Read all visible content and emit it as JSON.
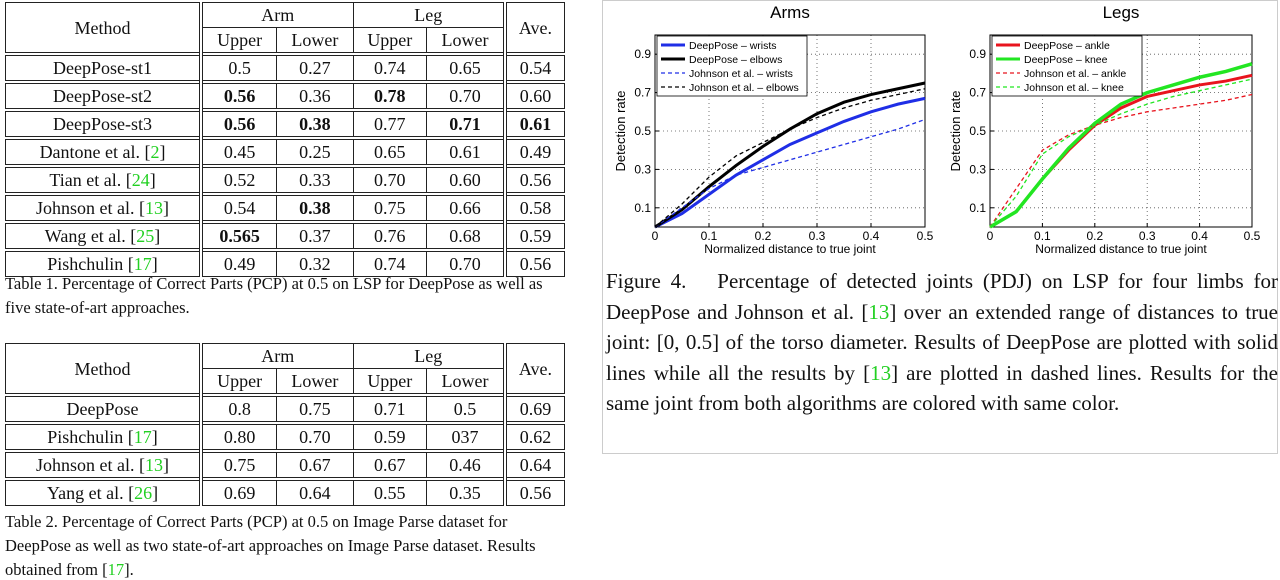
{
  "table1": {
    "header": {
      "method": "Method",
      "groups": [
        "Arm",
        "Leg"
      ],
      "sub": [
        "Upper",
        "Lower",
        "Upper",
        "Lower"
      ],
      "ave": "Ave."
    },
    "groups": [
      [
        {
          "method": [
            "DeepPose-st1"
          ],
          "cells": [
            "0.5",
            "0.27",
            "0.74",
            "0.65",
            "0.54"
          ]
        },
        {
          "method": [
            "DeepPose-st2"
          ],
          "cells": [
            {
              "text": "0.56",
              "bold": true
            },
            "0.36",
            {
              "text": "0.78",
              "bold": true
            },
            "0.70",
            "0.60"
          ]
        },
        {
          "method": [
            "DeepPose-st3"
          ],
          "cells": [
            {
              "text": "0.56",
              "bold": true
            },
            {
              "text": "0.38",
              "bold": true
            },
            "0.77",
            {
              "text": "0.71",
              "bold": true
            },
            {
              "text": "0.61",
              "bold": true
            }
          ]
        }
      ],
      [
        {
          "method": [
            "Dantone et al. [",
            "2",
            "]"
          ],
          "cells": [
            "0.45",
            "0.25",
            "0.65",
            "0.61",
            "0.49"
          ]
        },
        {
          "method": [
            "Tian et al. [",
            "24",
            "]"
          ],
          "cells": [
            "0.52",
            "0.33",
            "0.70",
            "0.60",
            "0.56"
          ]
        },
        {
          "method": [
            "Johnson et al. [",
            "13",
            "]"
          ],
          "cells": [
            "0.54",
            {
              "text": "0.38",
              "bold": true
            },
            "0.75",
            "0.66",
            "0.58"
          ]
        },
        {
          "method": [
            "Wang et al. [",
            "25",
            "]"
          ],
          "cells": [
            {
              "text": "0.565",
              "bold": true
            },
            "0.37",
            "0.76",
            "0.68",
            "0.59"
          ]
        },
        {
          "method": [
            "Pishchulin [",
            "17",
            "]"
          ],
          "cells": [
            "0.49",
            "0.32",
            "0.74",
            "0.70",
            "0.56"
          ]
        }
      ]
    ],
    "caption": [
      "Table 1. Percentage of Correct Parts (PCP) at 0.5 on LSP for DeepPose as well as five state-of-art approaches."
    ]
  },
  "table2": {
    "header": {
      "method": "Method",
      "groups": [
        "Arm",
        "Leg"
      ],
      "sub": [
        "Upper",
        "Lower",
        "Upper",
        "Lower"
      ],
      "ave": "Ave."
    },
    "groups": [
      [
        {
          "method": [
            "DeepPose"
          ],
          "cells": [
            "0.8",
            "0.75",
            "0.71",
            "0.5",
            "0.69"
          ]
        }
      ],
      [
        {
          "method": [
            "Pishchulin [",
            "17",
            "]"
          ],
          "cells": [
            "0.80",
            "0.70",
            "0.59",
            "037",
            "0.62"
          ]
        },
        {
          "method": [
            "Johnson et al. [",
            "13",
            "]"
          ],
          "cells": [
            "0.75",
            "0.67",
            "0.67",
            "0.46",
            "0.64"
          ]
        },
        {
          "method": [
            "Yang et al. [",
            "26",
            "]"
          ],
          "cells": [
            "0.69",
            "0.64",
            "0.55",
            "0.35",
            "0.56"
          ]
        }
      ]
    ],
    "caption": [
      "Table 2. Percentage of Correct Parts (PCP) at 0.5 on Image Parse dataset for DeepPose as well as two state-of-art approaches on Image Parse dataset. Results obtained from [",
      "17",
      "]."
    ]
  },
  "figure": {
    "caption": [
      "Figure 4.  Percentage of detected joints (PDJ) on LSP for four limbs for DeepPose and Johnson et al. [",
      "13",
      "] over an extended range of distances to true joint: [0, 0.5] of the torso diameter. Results of DeepPose are plotted with solid lines while all the results by [",
      "13",
      "] are plotted in dashed lines. Results for the same joint from both algorithms are colored with same color."
    ]
  },
  "chart_data": [
    {
      "type": "line",
      "title": "Arms",
      "x_label": "Normalized distance to true joint",
      "y_label": "Detection rate",
      "x": [
        0,
        0.05,
        0.1,
        0.15,
        0.2,
        0.25,
        0.3,
        0.35,
        0.4,
        0.45,
        0.5
      ],
      "xlim": [
        0,
        0.5
      ],
      "ylim": [
        0,
        1
      ],
      "xticks": [
        0,
        0.1,
        0.2,
        0.3,
        0.4,
        0.5
      ],
      "yticks": [
        0.1,
        0.3,
        0.5,
        0.7,
        0.9
      ],
      "grid": true,
      "legend": "upper left",
      "series": [
        {
          "name": "DeepPose – wrists",
          "color": "#1f2ee6",
          "dashed": false,
          "width": 3,
          "values": [
            0,
            0.07,
            0.17,
            0.27,
            0.35,
            0.43,
            0.49,
            0.55,
            0.6,
            0.64,
            0.67
          ]
        },
        {
          "name": "DeepPose – elbows",
          "color": "#000000",
          "dashed": false,
          "width": 3,
          "values": [
            0,
            0.09,
            0.21,
            0.32,
            0.42,
            0.51,
            0.59,
            0.65,
            0.69,
            0.72,
            0.75
          ]
        },
        {
          "name": "Johnson et al. – wrists",
          "color": "#1f2ee6",
          "dashed": true,
          "width": 1.3,
          "values": [
            0,
            0.1,
            0.2,
            0.27,
            0.31,
            0.35,
            0.39,
            0.43,
            0.47,
            0.51,
            0.56
          ]
        },
        {
          "name": "Johnson et al. – elbows",
          "color": "#000000",
          "dashed": true,
          "width": 1.3,
          "values": [
            0,
            0.12,
            0.26,
            0.37,
            0.44,
            0.51,
            0.57,
            0.62,
            0.66,
            0.69,
            0.72
          ]
        }
      ]
    },
    {
      "type": "line",
      "title": "Legs",
      "x_label": "Normalized distance to true joint",
      "y_label": "Detection rate",
      "x": [
        0,
        0.05,
        0.1,
        0.15,
        0.2,
        0.25,
        0.3,
        0.35,
        0.4,
        0.45,
        0.5
      ],
      "xlim": [
        0,
        0.5
      ],
      "ylim": [
        0,
        1
      ],
      "xticks": [
        0,
        0.1,
        0.2,
        0.3,
        0.4,
        0.5
      ],
      "yticks": [
        0.1,
        0.3,
        0.5,
        0.7,
        0.9
      ],
      "grid": true,
      "legend": "upper left",
      "series": [
        {
          "name": "DeepPose – ankle",
          "color": "#e8141e",
          "dashed": false,
          "width": 3,
          "values": [
            0,
            0.08,
            0.25,
            0.4,
            0.53,
            0.62,
            0.68,
            0.71,
            0.74,
            0.76,
            0.79
          ]
        },
        {
          "name": "DeepPose – knee",
          "color": "#22e622",
          "dashed": false,
          "width": 3.5,
          "values": [
            0,
            0.08,
            0.25,
            0.41,
            0.54,
            0.64,
            0.7,
            0.74,
            0.78,
            0.81,
            0.85
          ]
        },
        {
          "name": "Johnson et al. – ankle",
          "color": "#e8141e",
          "dashed": true,
          "width": 1.3,
          "values": [
            0,
            0.2,
            0.4,
            0.48,
            0.53,
            0.57,
            0.6,
            0.62,
            0.64,
            0.66,
            0.69
          ]
        },
        {
          "name": "Johnson et al. – knee",
          "color": "#22e622",
          "dashed": true,
          "width": 1.3,
          "values": [
            0,
            0.16,
            0.38,
            0.47,
            0.53,
            0.59,
            0.64,
            0.68,
            0.71,
            0.74,
            0.77
          ]
        }
      ]
    }
  ]
}
